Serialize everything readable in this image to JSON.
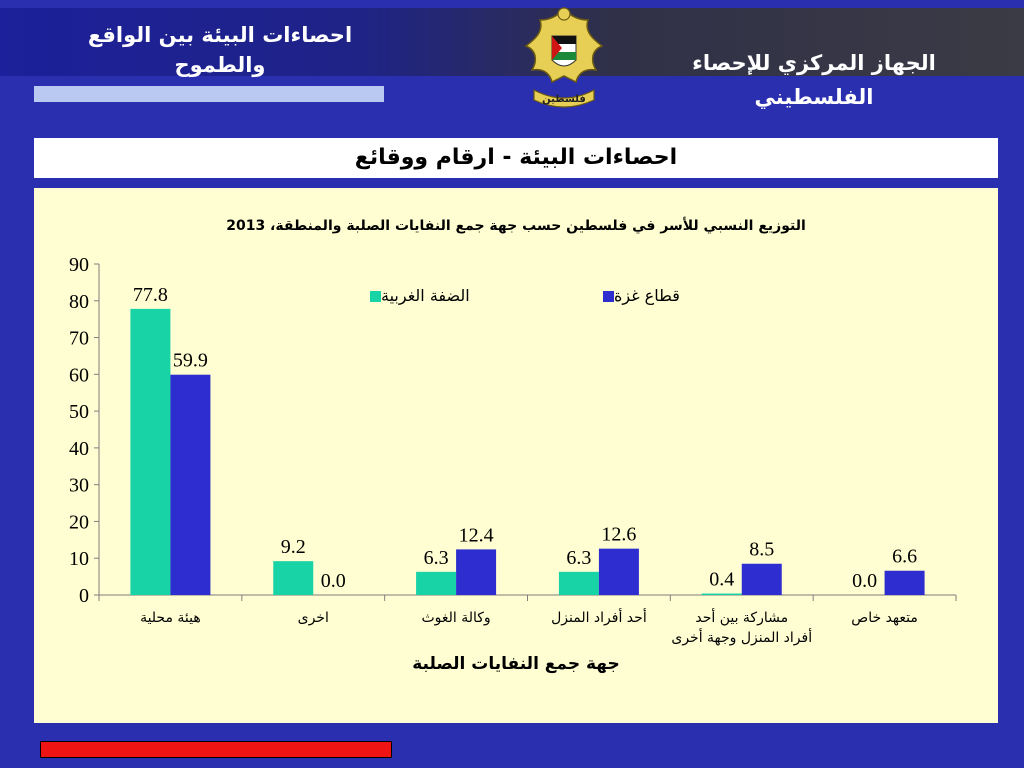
{
  "header": {
    "left_title": "احصاءات البيئة بين الواقع والطموح",
    "right_title": "الجهاز المركزي للإحصاء الفلسطيني",
    "emblem_text": "فلسطين"
  },
  "band": {
    "title": "احصاءات البيئة - ارقام ووقائع"
  },
  "colors": {
    "west_bank": "#18d3a6",
    "gaza": "#2e2ed0",
    "panel": "#fefed2",
    "background": "#2a2fb0"
  },
  "chart_data": {
    "type": "bar",
    "title": "التوزيع النسبي للأسر في فلسطين حسب جهة جمع النفايات الصلبة والمنطقة، 2013",
    "xlabel": "جهة جمع النفايات الصلبة",
    "ylabel": "",
    "ylim": [
      0,
      90
    ],
    "yticks": [
      0,
      10,
      20,
      30,
      40,
      50,
      60,
      70,
      80,
      90
    ],
    "legend_position": "top-right",
    "grid": false,
    "categories": [
      "هيئة محلية",
      "اخرى",
      "وكالة الغوث",
      "أحد أفراد المنزل",
      "مشاركة بين أحد أفراد المنزل وجهة أخرى",
      "متعهد خاص"
    ],
    "series": [
      {
        "name": "الضفة الغربية",
        "values": [
          77.8,
          9.2,
          6.3,
          6.3,
          0.4,
          0.0
        ],
        "labels": [
          "77.8",
          "9.2",
          "6.3",
          "6.3",
          "0.4",
          "0.0"
        ]
      },
      {
        "name": "قطاع غزة",
        "values": [
          59.9,
          0.0,
          12.4,
          12.6,
          8.5,
          6.6
        ],
        "labels": [
          "59.9",
          "0.0",
          "12.4",
          "12.6",
          "8.5",
          "6.6"
        ]
      }
    ]
  }
}
